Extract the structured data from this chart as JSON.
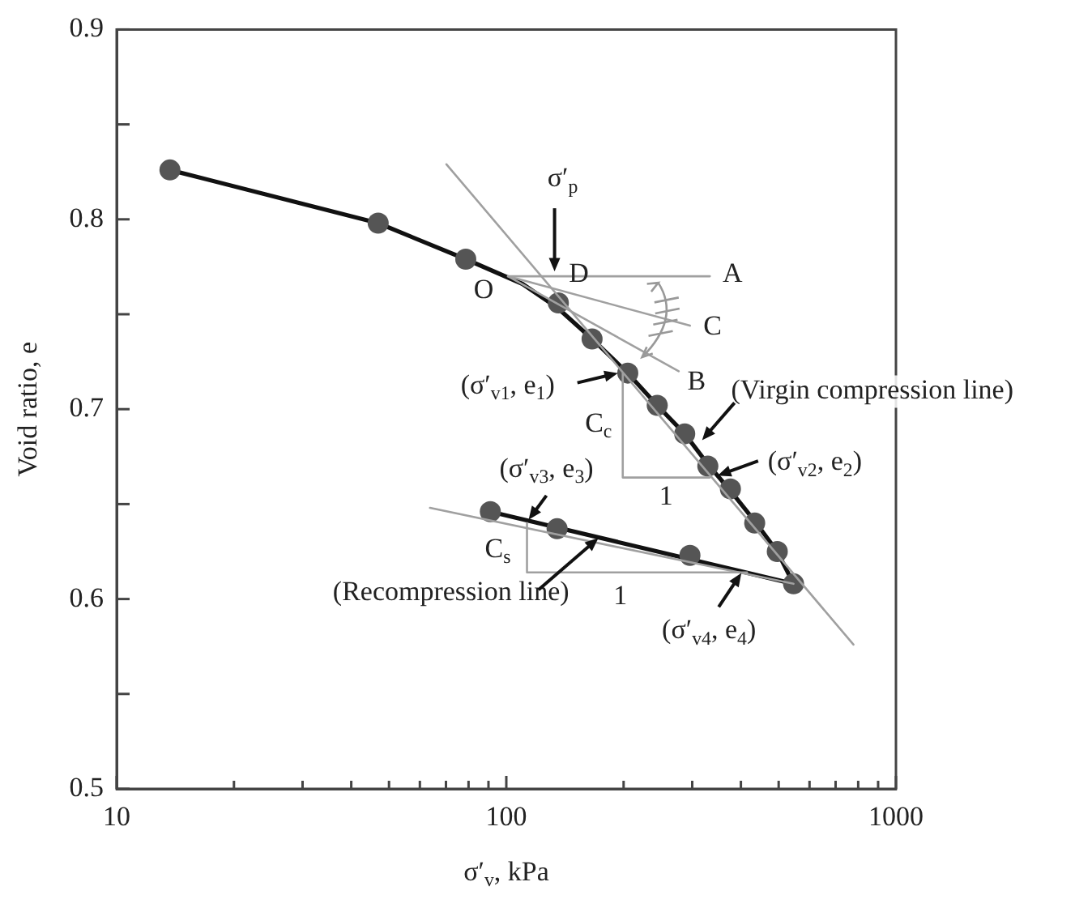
{
  "chart_data": {
    "type": "scatter",
    "xlabel": "σ′$_{v}$, kPa",
    "ylabel": "Void ratio, e",
    "log": "x",
    "grid": false,
    "legend": false,
    "xlim": [
      10,
      1000
    ],
    "ylim": [
      0.5,
      0.9
    ],
    "xticks": [
      10,
      {
        "value": 20,
        "label": null
      },
      {
        "value": 30,
        "label": null
      },
      {
        "value": 40,
        "label": null
      },
      {
        "value": 50,
        "label": null
      },
      {
        "value": 60,
        "label": null
      },
      {
        "value": 70,
        "label": null
      },
      {
        "value": 80,
        "label": null
      },
      {
        "value": 90,
        "label": null
      },
      100,
      {
        "value": 200,
        "label": null
      },
      {
        "value": 300,
        "label": null
      },
      {
        "value": 400,
        "label": null
      },
      {
        "value": 500,
        "label": null
      },
      {
        "value": 600,
        "label": null
      },
      {
        "value": 700,
        "label": null
      },
      {
        "value": 800,
        "label": null
      },
      {
        "value": 900,
        "label": null
      },
      1000
    ],
    "yticks": [
      0.5,
      {
        "value": 0.55,
        "label": null
      },
      0.6,
      {
        "value": 0.65,
        "label": null
      },
      0.7,
      {
        "value": 0.75,
        "label": null
      },
      0.8,
      {
        "value": 0.85,
        "label": null
      },
      0.9
    ],
    "series": [
      {
        "type": "line",
        "color": "#a0a0a0",
        "marker": "none",
        "x": [
          70.2,
          778
        ],
        "values": [
          0.829,
          0.576
        ]
      },
      {
        "type": "line",
        "color": "#a0a0a0",
        "marker": "none",
        "x": [
          63.7,
          546
        ],
        "values": [
          0.648,
          0.608
        ]
      },
      {
        "type": "line",
        "color": "#a0a0a0",
        "marker": "none",
        "x": [
          101,
          333
        ],
        "values": [
          0.77,
          0.77
        ]
      },
      {
        "type": "line",
        "color": "#a0a0a0",
        "marker": "none",
        "x": [
          101,
          296
        ],
        "values": [
          0.77,
          0.744
        ]
      },
      {
        "type": "line",
        "color": "#a0a0a0",
        "marker": "none",
        "x": [
          101,
          277
        ],
        "values": [
          0.77,
          0.72
        ]
      },
      {
        "type": "line",
        "color": "#a0a0a0",
        "marker": "none",
        "x": [
          199,
          199,
          333
        ],
        "values": [
          0.719,
          0.664,
          0.664
        ]
      },
      {
        "type": "line",
        "color": "#a0a0a0",
        "marker": "none",
        "x": [
          113,
          113,
          415
        ],
        "values": [
          0.64,
          0.614,
          0.614
        ]
      },
      {
        "type": "scatter",
        "color": "#555555",
        "marker": "circle",
        "x": [
          13.7,
          46.9,
          78.7,
          136,
          166,
          205,
          244,
          287,
          329,
          376,
          434,
          496,
          546,
          91,
          135,
          296
        ],
        "values": [
          0.826,
          0.798,
          0.779,
          0.756,
          0.737,
          0.719,
          0.702,
          0.687,
          0.67,
          0.658,
          0.64,
          0.625,
          0.608,
          0.646,
          0.637,
          0.623
        ]
      },
      {
        "type": "line",
        "color": "#111111",
        "marker": "none",
        "x": [
          13.7,
          46.9,
          78.7,
          110,
          136,
          166,
          205,
          244,
          287,
          329,
          376,
          434,
          496,
          546
        ],
        "values": [
          0.826,
          0.798,
          0.779,
          0.766,
          0.753,
          0.737,
          0.719,
          0.702,
          0.687,
          0.671,
          0.657,
          0.641,
          0.625,
          0.608
        ]
      },
      {
        "type": "line",
        "color": "#111111",
        "marker": "none",
        "x": [
          91,
          546
        ],
        "values": [
          0.646,
          0.608
        ]
      }
    ],
    "annotations": [
      {
        "text": "σ′$_{p}$",
        "x": 133,
        "y": 0.77
      },
      {
        "text": "O",
        "x": 101,
        "y": 0.77
      },
      {
        "text": "D",
        "x": 133,
        "y": 0.77
      },
      {
        "text": "A",
        "x": 333,
        "y": 0.77
      },
      {
        "text": "C",
        "x": 296,
        "y": 0.744
      },
      {
        "text": "B",
        "x": 277,
        "y": 0.72
      },
      {
        "text": "(σ′$_{v1}$, e$_{1}$)",
        "x": 199,
        "y": 0.719
      },
      {
        "text": "C$_{c}$",
        "x": 199,
        "y": 0.692
      },
      {
        "text": "1",
        "x": 257,
        "y": 0.664
      },
      {
        "text": "(Virgin compression line)",
        "x": 312,
        "y": 0.682
      },
      {
        "text": "(σ′$_{v2}$, e$_{2}$)",
        "x": 342,
        "y": 0.665
      },
      {
        "text": "(σ′$_{v3}$, e$_{3}$)",
        "x": 113,
        "y": 0.64
      },
      {
        "text": "C$_{s}$",
        "x": 113,
        "y": 0.626
      },
      {
        "text": "1",
        "x": 216,
        "y": 0.614
      },
      {
        "text": "(Recompression line)",
        "x": 174,
        "y": 0.633
      },
      {
        "text": "(σ′$_{v4}$, e$_{4}$)",
        "x": 405,
        "y": 0.612
      }
    ]
  }
}
